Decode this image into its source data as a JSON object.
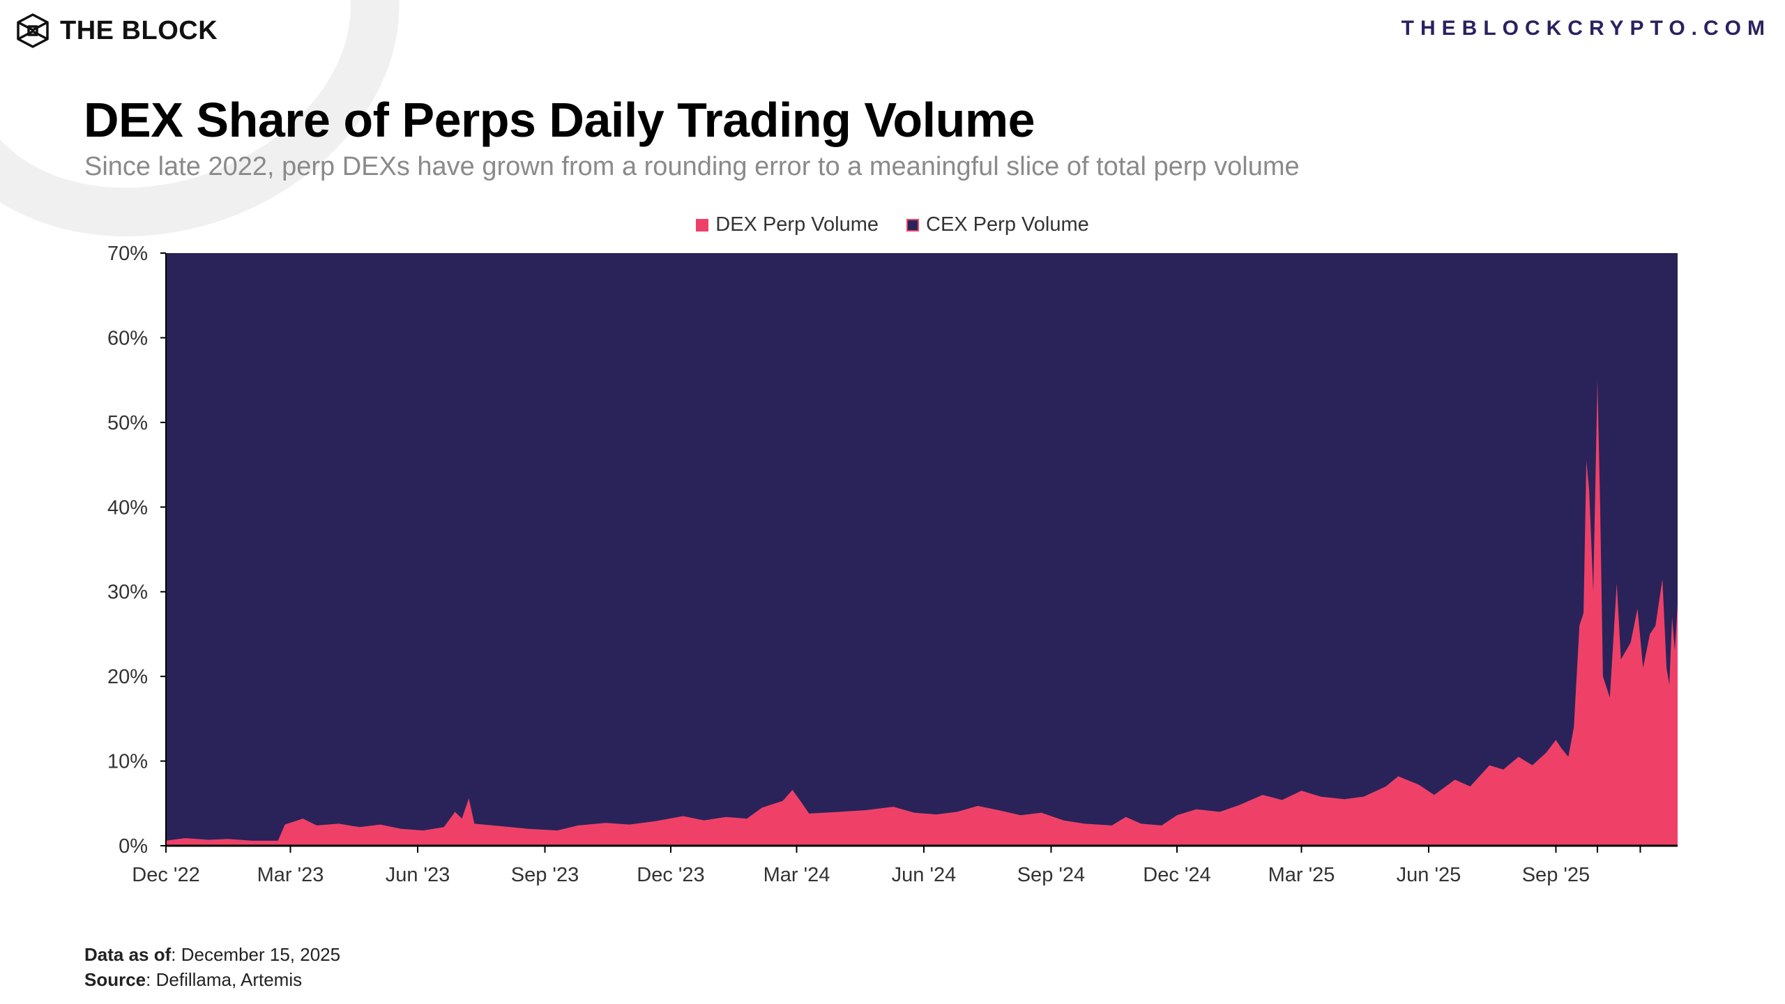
{
  "brand": {
    "logo_text": "THE BLOCK",
    "website": "THEBLOCKCRYPTO.COM"
  },
  "header": {
    "title": "DEX Share of Perps Daily Trading Volume",
    "subtitle": "Since late 2022, perp DEXs have grown from a rounding error to a meaningful slice of total perp volume"
  },
  "footer": {
    "data_as_of_label": "Data as of",
    "data_as_of_value": ": December 15, 2025",
    "source_label": "Source",
    "source_value": ": Defillama, Artemis"
  },
  "chart_data": {
    "type": "area",
    "stacked": true,
    "title": "DEX Share of Perps Daily Trading Volume",
    "xlabel": "",
    "ylabel": "",
    "ylim": [
      0,
      70
    ],
    "xlim": [
      "2022-12-01",
      "2025-11-28"
    ],
    "grid": false,
    "legend_placement": "top-center",
    "y_ticks": [
      "0%",
      "10%",
      "20%",
      "30%",
      "40%",
      "50%",
      "60%",
      "70%"
    ],
    "x_ticks": [
      {
        "date": "2022-12-01",
        "label": "Dec '22"
      },
      {
        "date": "2023-03-01",
        "label": "Mar '23"
      },
      {
        "date": "2023-06-01",
        "label": "Jun '23"
      },
      {
        "date": "2023-09-01",
        "label": "Sep '23"
      },
      {
        "date": "2023-12-01",
        "label": "Dec '23"
      },
      {
        "date": "2024-03-01",
        "label": "Mar '24"
      },
      {
        "date": "2024-06-01",
        "label": "Jun '24"
      },
      {
        "date": "2024-09-01",
        "label": "Sep '24"
      },
      {
        "date": "2024-12-01",
        "label": "Dec '24"
      },
      {
        "date": "2025-03-01",
        "label": "Mar '25"
      },
      {
        "date": "2025-06-01",
        "label": "Jun '25"
      },
      {
        "date": "2025-09-01",
        "label": "Sep '25"
      }
    ],
    "minor_ticks": [
      "2025-10-01",
      "2025-11-01"
    ],
    "series": [
      {
        "name": "DEX Perp Volume",
        "color": "#ef4168",
        "note_unit": "%",
        "points": [
          [
            "2022-12-01",
            0.6
          ],
          [
            "2022-12-15",
            0.9
          ],
          [
            "2023-01-01",
            0.7
          ],
          [
            "2023-01-15",
            0.8
          ],
          [
            "2023-02-01",
            0.6
          ],
          [
            "2023-02-20",
            0.6
          ],
          [
            "2023-02-25",
            2.5
          ],
          [
            "2023-03-10",
            3.2
          ],
          [
            "2023-03-20",
            2.4
          ],
          [
            "2023-04-05",
            2.6
          ],
          [
            "2023-04-20",
            2.2
          ],
          [
            "2023-05-05",
            2.5
          ],
          [
            "2023-05-20",
            2.0
          ],
          [
            "2023-06-05",
            1.8
          ],
          [
            "2023-06-20",
            2.2
          ],
          [
            "2023-06-28",
            4.0
          ],
          [
            "2023-07-03",
            3.2
          ],
          [
            "2023-07-08",
            5.6
          ],
          [
            "2023-07-12",
            2.6
          ],
          [
            "2023-08-01",
            2.3
          ],
          [
            "2023-08-20",
            2.0
          ],
          [
            "2023-09-10",
            1.8
          ],
          [
            "2023-09-25",
            2.4
          ],
          [
            "2023-10-15",
            2.7
          ],
          [
            "2023-11-01",
            2.5
          ],
          [
            "2023-11-20",
            2.9
          ],
          [
            "2023-12-10",
            3.5
          ],
          [
            "2023-12-25",
            3.0
          ],
          [
            "2024-01-10",
            3.4
          ],
          [
            "2024-01-25",
            3.2
          ],
          [
            "2024-02-05",
            4.5
          ],
          [
            "2024-02-20",
            5.3
          ],
          [
            "2024-02-27",
            6.6
          ],
          [
            "2024-03-05",
            5.0
          ],
          [
            "2024-03-10",
            3.8
          ],
          [
            "2024-04-01",
            4.0
          ],
          [
            "2024-04-20",
            4.2
          ],
          [
            "2024-05-10",
            4.6
          ],
          [
            "2024-05-25",
            3.9
          ],
          [
            "2024-06-10",
            3.7
          ],
          [
            "2024-06-25",
            4.0
          ],
          [
            "2024-07-10",
            4.7
          ],
          [
            "2024-07-25",
            4.2
          ],
          [
            "2024-08-10",
            3.6
          ],
          [
            "2024-08-25",
            3.9
          ],
          [
            "2024-09-10",
            3.0
          ],
          [
            "2024-09-25",
            2.6
          ],
          [
            "2024-10-15",
            2.4
          ],
          [
            "2024-10-25",
            3.4
          ],
          [
            "2024-11-05",
            2.6
          ],
          [
            "2024-11-20",
            2.4
          ],
          [
            "2024-12-01",
            3.6
          ],
          [
            "2024-12-15",
            4.3
          ],
          [
            "2025-01-01",
            4.0
          ],
          [
            "2025-01-15",
            4.8
          ],
          [
            "2025-02-01",
            6.0
          ],
          [
            "2025-02-15",
            5.4
          ],
          [
            "2025-03-01",
            6.5
          ],
          [
            "2025-03-15",
            5.8
          ],
          [
            "2025-04-01",
            5.5
          ],
          [
            "2025-04-15",
            5.8
          ],
          [
            "2025-05-01",
            7.0
          ],
          [
            "2025-05-10",
            8.2
          ],
          [
            "2025-05-25",
            7.2
          ],
          [
            "2025-06-05",
            6.0
          ],
          [
            "2025-06-20",
            7.8
          ],
          [
            "2025-07-01",
            7.0
          ],
          [
            "2025-07-15",
            9.5
          ],
          [
            "2025-07-25",
            9.0
          ],
          [
            "2025-08-05",
            10.5
          ],
          [
            "2025-08-15",
            9.5
          ],
          [
            "2025-08-25",
            11.0
          ],
          [
            "2025-09-01",
            12.5
          ],
          [
            "2025-09-05",
            11.5
          ],
          [
            "2025-09-10",
            10.5
          ],
          [
            "2025-09-14",
            14.0
          ],
          [
            "2025-09-18",
            26.0
          ],
          [
            "2025-09-21",
            27.5
          ],
          [
            "2025-09-23",
            45.5
          ],
          [
            "2025-09-25",
            42.0
          ],
          [
            "2025-09-28",
            30.0
          ],
          [
            "2025-10-01",
            55.0
          ],
          [
            "2025-10-03",
            40.0
          ],
          [
            "2025-10-05",
            20.0
          ],
          [
            "2025-10-10",
            17.5
          ],
          [
            "2025-10-15",
            31.0
          ],
          [
            "2025-10-18",
            22.0
          ],
          [
            "2025-10-25",
            24.0
          ],
          [
            "2025-10-30",
            28.0
          ],
          [
            "2025-11-03",
            21.0
          ],
          [
            "2025-11-08",
            25.0
          ],
          [
            "2025-11-12",
            26.0
          ],
          [
            "2025-11-17",
            31.5
          ],
          [
            "2025-11-20",
            21.0
          ],
          [
            "2025-11-22",
            19.0
          ],
          [
            "2025-11-24",
            27.0
          ],
          [
            "2025-11-26",
            23.0
          ],
          [
            "2025-11-28",
            28.5
          ]
        ]
      },
      {
        "name": "CEX Perp Volume",
        "color": "#2a2359",
        "fills_to": 70
      }
    ]
  }
}
